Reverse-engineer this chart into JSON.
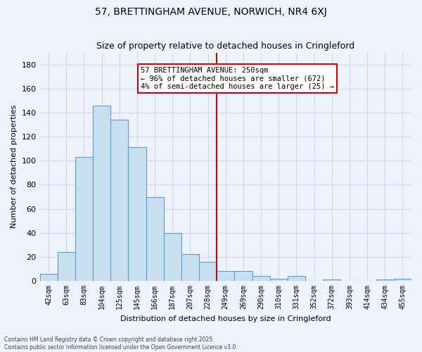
{
  "title": "57, BRETTINGHAM AVENUE, NORWICH, NR4 6XJ",
  "subtitle": "Size of property relative to detached houses in Cringleford",
  "xlabel": "Distribution of detached houses by size in Cringleford",
  "ylabel": "Number of detached properties",
  "bar_labels": [
    "42sqm",
    "63sqm",
    "83sqm",
    "104sqm",
    "125sqm",
    "145sqm",
    "166sqm",
    "187sqm",
    "207sqm",
    "228sqm",
    "249sqm",
    "269sqm",
    "290sqm",
    "310sqm",
    "331sqm",
    "352sqm",
    "372sqm",
    "393sqm",
    "414sqm",
    "434sqm",
    "455sqm"
  ],
  "bar_values": [
    6,
    24,
    103,
    146,
    134,
    111,
    70,
    40,
    22,
    16,
    8,
    8,
    4,
    2,
    4,
    0,
    1,
    0,
    0,
    1,
    2
  ],
  "bar_color": "#c8dff0",
  "bar_edge_color": "#5b9bd5",
  "vline_pos": 10.5,
  "vline_color": "#cc0000",
  "annotation_title": "57 BRETTINGHAM AVENUE: 250sqm",
  "annotation_line1": "← 96% of detached houses are smaller (672)",
  "annotation_line2": "4% of semi-detached houses are larger (25) →",
  "annotation_box_facecolor": "#ffffff",
  "annotation_box_edgecolor": "#cc0000",
  "ylim": [
    0,
    190
  ],
  "yticks": [
    0,
    20,
    40,
    60,
    80,
    100,
    120,
    140,
    160,
    180
  ],
  "footer1": "Contains HM Land Registry data © Crown copyright and database right 2025.",
  "footer2": "Contains public sector information licensed under the Open Government Licence v3.0.",
  "bg_color": "#eef2fc",
  "grid_color": "#d0d8ee",
  "title_fontsize": 10,
  "subtitle_fontsize": 9,
  "ylabel_fontsize": 8,
  "xlabel_fontsize": 8,
  "tick_fontsize": 7,
  "annotation_fontsize": 7.5,
  "footer_fontsize": 5.5
}
